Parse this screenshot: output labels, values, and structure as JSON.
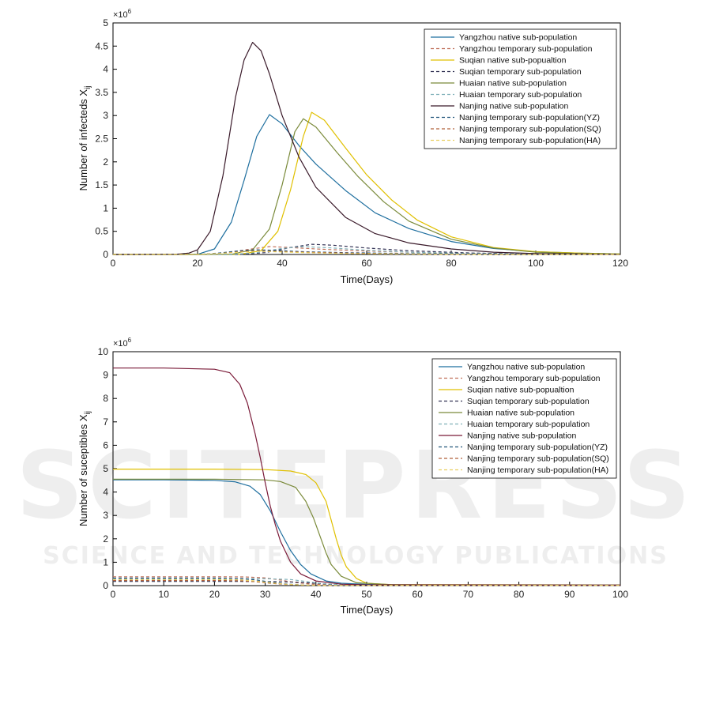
{
  "watermark": {
    "big": "SCITEPRESS",
    "small": "SCIENCE AND TECHNOLOGY PUBLICATIONS"
  },
  "chart_data": [
    {
      "type": "line",
      "xlabel": "Time(Days)",
      "ylabel_main": "Number of infecteds X",
      "ylabel_sub": "ij",
      "y_multiplier": "×10",
      "y_multiplier_exp": "6",
      "xlim": [
        0,
        120
      ],
      "ylim": [
        0,
        5
      ],
      "xticks": [
        0,
        20,
        40,
        60,
        80,
        100,
        120
      ],
      "yticks": [
        0,
        0.5,
        1,
        1.5,
        2,
        2.5,
        3,
        3.5,
        4,
        4.5,
        5
      ],
      "legend_position": "top-right",
      "series": [
        {
          "name": "Yangzhou native sub-population",
          "color": "#1f6f9f",
          "style": "solid",
          "x": [
            0,
            20,
            24,
            28,
            31,
            34,
            37,
            40,
            44,
            48,
            55,
            62,
            70,
            80,
            90,
            100,
            110,
            120
          ],
          "y": [
            0,
            0.003,
            0.12,
            0.7,
            1.6,
            2.55,
            3.02,
            2.82,
            2.35,
            1.95,
            1.38,
            0.9,
            0.56,
            0.28,
            0.13,
            0.06,
            0.03,
            0.01
          ]
        },
        {
          "name": "Yangzhou temporary sub-population",
          "color": "#c0705a",
          "style": "dashed",
          "x": [
            0,
            20,
            26,
            32,
            37,
            42,
            48,
            58,
            70,
            85,
            100,
            120
          ],
          "y": [
            0,
            0.0,
            0.03,
            0.11,
            0.17,
            0.15,
            0.12,
            0.08,
            0.05,
            0.02,
            0.01,
            0.0
          ]
        },
        {
          "name": "Suqian native sub-popualtion",
          "color": "#e0c000",
          "style": "solid",
          "x": [
            0,
            30,
            35,
            39,
            42,
            45,
            47,
            50,
            55,
            60,
            66,
            72,
            80,
            90,
            100,
            110,
            120
          ],
          "y": [
            0,
            0.003,
            0.08,
            0.5,
            1.4,
            2.55,
            3.07,
            2.9,
            2.3,
            1.72,
            1.17,
            0.74,
            0.38,
            0.15,
            0.06,
            0.03,
            0.01
          ]
        },
        {
          "name": "Suqian temporary sub-population",
          "color": "#333355",
          "style": "dashed",
          "x": [
            0,
            30,
            36,
            42,
            47,
            52,
            60,
            70,
            85,
            100,
            120
          ],
          "y": [
            0,
            0.0,
            0.04,
            0.15,
            0.22,
            0.2,
            0.14,
            0.08,
            0.03,
            0.01,
            0.0
          ]
        },
        {
          "name": "Huaian native sub-population",
          "color": "#7a8a3a",
          "style": "solid",
          "x": [
            0,
            28,
            33,
            37,
            40,
            43,
            45,
            48,
            53,
            58,
            64,
            70,
            80,
            90,
            100,
            110,
            120
          ],
          "y": [
            0,
            0.003,
            0.1,
            0.55,
            1.5,
            2.65,
            2.93,
            2.75,
            2.2,
            1.68,
            1.14,
            0.72,
            0.33,
            0.14,
            0.05,
            0.02,
            0.01
          ]
        },
        {
          "name": "Huaian temporary sub-population",
          "color": "#7fb0b8",
          "style": "dashed",
          "x": [
            0,
            28,
            34,
            40,
            45,
            52,
            60,
            70,
            85,
            100,
            120
          ],
          "y": [
            0,
            0.0,
            0.04,
            0.13,
            0.17,
            0.14,
            0.09,
            0.05,
            0.02,
            0.01,
            0.0
          ]
        },
        {
          "name": "Nanjing native sub-population",
          "color": "#3a1a2a",
          "style": "solid",
          "x": [
            0,
            15,
            18,
            20,
            23,
            26,
            29,
            31,
            33,
            35,
            37,
            40,
            44,
            48,
            55,
            62,
            70,
            80,
            90,
            100,
            110,
            120
          ],
          "y": [
            0,
            0.005,
            0.03,
            0.1,
            0.5,
            1.7,
            3.4,
            4.2,
            4.58,
            4.4,
            3.9,
            3.0,
            2.1,
            1.45,
            0.8,
            0.45,
            0.25,
            0.12,
            0.05,
            0.02,
            0.01,
            0.0
          ]
        },
        {
          "name": "Nanjing temporary sub-population(YZ)",
          "color": "#22557a",
          "style": "dashed",
          "x": [
            0,
            20,
            25,
            30,
            34,
            38,
            45,
            55,
            70,
            90,
            120
          ],
          "y": [
            0,
            0.0,
            0.03,
            0.08,
            0.1,
            0.09,
            0.06,
            0.04,
            0.02,
            0.01,
            0.0
          ]
        },
        {
          "name": "Nanjing temporary sub-population(SQ)",
          "color": "#b0603a",
          "style": "dashed",
          "x": [
            0,
            20,
            25,
            30,
            34,
            38,
            45,
            55,
            70,
            90,
            120
          ],
          "y": [
            0,
            0.0,
            0.02,
            0.06,
            0.08,
            0.07,
            0.05,
            0.03,
            0.01,
            0.0,
            0.0
          ]
        },
        {
          "name": "Nanjing temporary sub-population(HA)",
          "color": "#e8d060",
          "style": "dashed",
          "x": [
            0,
            20,
            25,
            30,
            34,
            38,
            45,
            55,
            70,
            90,
            120
          ],
          "y": [
            0,
            0.0,
            0.02,
            0.05,
            0.07,
            0.06,
            0.04,
            0.02,
            0.01,
            0.0,
            0.0
          ]
        }
      ]
    },
    {
      "type": "line",
      "xlabel": "Time(Days)",
      "ylabel_main": "Number of suceptibles X",
      "ylabel_sub": "ij",
      "y_multiplier": "×10",
      "y_multiplier_exp": "6",
      "xlim": [
        0,
        100
      ],
      "ylim": [
        0,
        10
      ],
      "xticks": [
        0,
        10,
        20,
        30,
        40,
        50,
        60,
        70,
        80,
        90,
        100
      ],
      "yticks": [
        0,
        1,
        2,
        3,
        4,
        5,
        6,
        7,
        8,
        9,
        10
      ],
      "legend_position": "top-right",
      "series": [
        {
          "name": "Yangzhou native sub-population",
          "color": "#1f6f9f",
          "style": "solid",
          "x": [
            0,
            10,
            20,
            24,
            27,
            29,
            31,
            33,
            35,
            37,
            39,
            42,
            45,
            50,
            60,
            100
          ],
          "y": [
            4.52,
            4.52,
            4.5,
            4.44,
            4.25,
            3.9,
            3.2,
            2.3,
            1.5,
            0.9,
            0.5,
            0.2,
            0.1,
            0.05,
            0.03,
            0.03
          ]
        },
        {
          "name": "Yangzhou temporary sub-population",
          "color": "#c0705a",
          "style": "dashed",
          "x": [
            0,
            20,
            26,
            30,
            33,
            36,
            40,
            45,
            100
          ],
          "y": [
            0.38,
            0.38,
            0.37,
            0.33,
            0.24,
            0.13,
            0.05,
            0.02,
            0.01
          ]
        },
        {
          "name": "Suqian native sub-popualtion",
          "color": "#e0c000",
          "style": "solid",
          "x": [
            0,
            20,
            30,
            35,
            38,
            40,
            42,
            43,
            44,
            45,
            46,
            48,
            50,
            55,
            100
          ],
          "y": [
            4.98,
            4.98,
            4.96,
            4.9,
            4.75,
            4.4,
            3.6,
            2.8,
            2.0,
            1.3,
            0.8,
            0.3,
            0.1,
            0.04,
            0.03
          ]
        },
        {
          "name": "Suqian temporary sub-population",
          "color": "#333355",
          "style": "dashed",
          "x": [
            0,
            25,
            32,
            36,
            40,
            43,
            47,
            50,
            100
          ],
          "y": [
            0.18,
            0.18,
            0.17,
            0.15,
            0.1,
            0.05,
            0.02,
            0.01,
            0.01
          ]
        },
        {
          "name": "Huaian native sub-population",
          "color": "#7a8a3a",
          "style": "solid",
          "x": [
            0,
            20,
            30,
            33,
            36,
            38,
            39.5,
            41,
            42,
            43,
            45,
            48,
            55,
            100
          ],
          "y": [
            4.55,
            4.55,
            4.52,
            4.45,
            4.2,
            3.6,
            2.9,
            2.0,
            1.4,
            0.9,
            0.4,
            0.12,
            0.04,
            0.03
          ]
        },
        {
          "name": "Huaian temporary sub-population",
          "color": "#7fb0b8",
          "style": "dashed",
          "x": [
            0,
            25,
            31,
            35,
            38,
            41,
            45,
            50,
            100
          ],
          "y": [
            0.3,
            0.3,
            0.29,
            0.26,
            0.18,
            0.09,
            0.03,
            0.01,
            0.01
          ]
        },
        {
          "name": "Nanjing native sub-population",
          "color": "#7a1a38",
          "style": "solid",
          "x": [
            0,
            10,
            20,
            23,
            25,
            26.5,
            28,
            29,
            30,
            31,
            32,
            33,
            35,
            37,
            40,
            45,
            50,
            100
          ],
          "y": [
            9.3,
            9.3,
            9.25,
            9.1,
            8.6,
            7.8,
            6.5,
            5.5,
            4.4,
            3.4,
            2.6,
            1.9,
            1.0,
            0.5,
            0.2,
            0.06,
            0.03,
            0.02
          ]
        },
        {
          "name": "Nanjing temporary sub-population(YZ)",
          "color": "#22557a",
          "style": "dashed",
          "x": [
            0,
            20,
            25,
            28,
            31,
            34,
            38,
            42,
            100
          ],
          "y": [
            0.32,
            0.32,
            0.3,
            0.25,
            0.15,
            0.07,
            0.02,
            0.01,
            0.01
          ]
        },
        {
          "name": "Nanjing temporary sub-population(SQ)",
          "color": "#b0603a",
          "style": "dashed",
          "x": [
            0,
            20,
            25,
            28,
            31,
            34,
            38,
            42,
            100
          ],
          "y": [
            0.22,
            0.22,
            0.21,
            0.17,
            0.1,
            0.05,
            0.02,
            0.01,
            0.01
          ]
        },
        {
          "name": "Nanjing temporary sub-population(HA)",
          "color": "#e8d060",
          "style": "dashed",
          "x": [
            0,
            20,
            25,
            28,
            31,
            34,
            38,
            42,
            100
          ],
          "y": [
            0.26,
            0.26,
            0.25,
            0.2,
            0.12,
            0.06,
            0.02,
            0.01,
            0.01
          ]
        }
      ]
    }
  ]
}
